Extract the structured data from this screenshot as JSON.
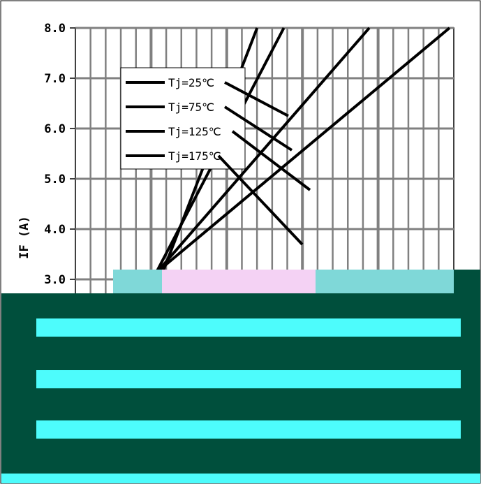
{
  "chart_data": {
    "type": "line",
    "title": "",
    "xlabel": "",
    "ylabel": "IF (A)",
    "ylim": [
      0.0,
      8.0
    ],
    "ytick_step": 1.0,
    "y_tick_labels": [
      "3.0",
      "4.0",
      "5.0",
      "6.0",
      "7.0",
      "8.0"
    ],
    "grid": true,
    "legend_placement": "top-left",
    "series": [
      {
        "name": "Tj=25℃",
        "points": [
          [
            0.64,
            2.5
          ],
          [
            0.84,
            8.0
          ]
        ]
      },
      {
        "name": "Tj=75℃",
        "points": [
          [
            0.62,
            2.5
          ],
          [
            0.89,
            8.0
          ]
        ]
      },
      {
        "name": "Tj=125℃",
        "points": [
          [
            0.6,
            2.5
          ],
          [
            1.05,
            8.0
          ]
        ]
      },
      {
        "name": "Tj=175℃",
        "points": [
          [
            0.58,
            2.5
          ],
          [
            1.2,
            8.0
          ]
        ]
      }
    ],
    "colors": {
      "series": "#000000",
      "grid": "#808080",
      "plot_background": "#ffffff",
      "overlay": "#004f3c",
      "noise_cyan": "#4dfcfc",
      "noise_pink": "#f4d2f4"
    }
  }
}
